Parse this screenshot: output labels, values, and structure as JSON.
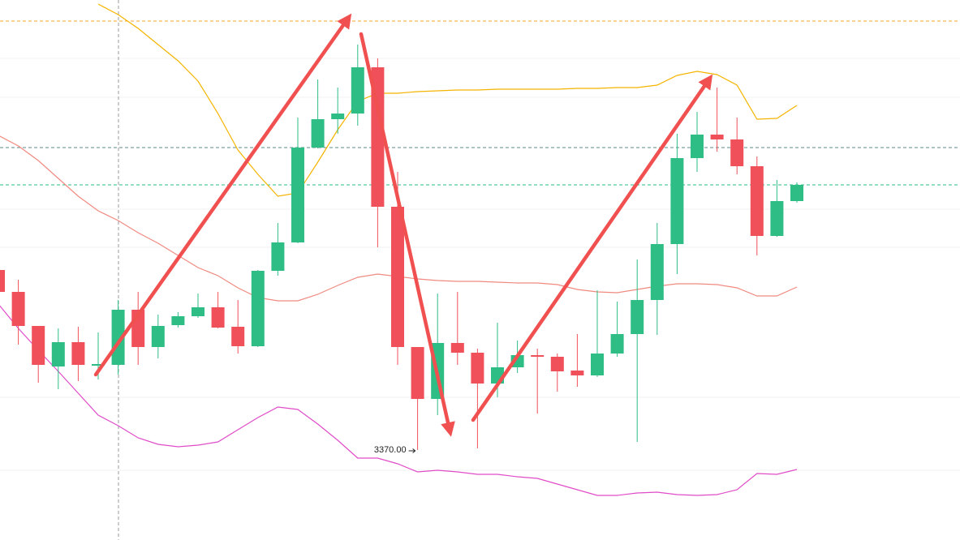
{
  "chart_data": {
    "type": "candlestick",
    "ylim": [
      3314.5,
      3647.5
    ],
    "up_color": "#2ebd85",
    "down_color": "#f0505a",
    "open": [
      3481,
      3467.5,
      3446.5,
      3421.5,
      3436.5,
      3422,
      3422.5,
      3456.5,
      3433.5,
      3447,
      3452.5,
      3458,
      3446,
      3434,
      3480.5,
      3498,
      3556.5,
      3574,
      3577.5,
      3606,
      3520,
      3433.5,
      3401.5,
      3436,
      3430,
      3411,
      3421,
      3428.5,
      3427.5,
      3419,
      3416,
      3429.5,
      3441.5,
      3462.5,
      3497,
      3550,
      3564.5,
      3561.5,
      3545,
      3502,
      3523.5
    ],
    "high": [
      3481,
      3475,
      3446.5,
      3445,
      3446,
      3442.5,
      3462.5,
      3467.5,
      3453.5,
      3455,
      3466.5,
      3467.5,
      3462.5,
      3481,
      3510,
      3575,
      3598.5,
      3593.5,
      3620,
      3611.5,
      3541.5,
      3433.5,
      3466.5,
      3467.5,
      3432.5,
      3448.5,
      3437.5,
      3432.5,
      3429.5,
      3441.5,
      3468.5,
      3461.5,
      3487.5,
      3510,
      3565,
      3578.5,
      3593.5,
      3575,
      3551,
      3536.5,
      3535
    ],
    "low": [
      3467.5,
      3435,
      3411.5,
      3407.5,
      3412.5,
      3413.5,
      3416.5,
      3422.5,
      3426.5,
      3445.5,
      3451.5,
      3445,
      3429.5,
      3433.5,
      3477.5,
      3497.5,
      3556,
      3565,
      3570,
      3495,
      3422.5,
      3370,
      3391.5,
      3422.5,
      3371,
      3402.5,
      3417.5,
      3392.5,
      3406,
      3409,
      3415,
      3427.5,
      3375,
      3441,
      3478.5,
      3541.5,
      3554,
      3540,
      3490,
      3501.5,
      3522.5
    ],
    "close": [
      3467.5,
      3446.5,
      3422.5,
      3436.5,
      3422.5,
      3423,
      3456.5,
      3433.5,
      3446.5,
      3452.5,
      3458,
      3445.5,
      3434,
      3480.5,
      3498,
      3556.5,
      3574,
      3577.5,
      3606,
      3520,
      3433.5,
      3401.5,
      3436,
      3430,
      3411,
      3421,
      3428.5,
      3427.5,
      3418.5,
      3416,
      3429.5,
      3441.5,
      3462.5,
      3497,
      3550,
      3564.5,
      3561.5,
      3545,
      3502,
      3523.5,
      3533.5
    ],
    "series": [
      {
        "color": "#f5b400",
        "values": [
          null,
          null,
          null,
          null,
          null,
          3645,
          3638.5,
          3630,
          3620,
          3610,
          3597.5,
          3577.5,
          3555,
          3540,
          3526.5,
          3528.5,
          3547.5,
          3567.5,
          3585,
          3590,
          3590,
          3591,
          3591.5,
          3592,
          3592,
          3592.5,
          3592.5,
          3592.5,
          3592.5,
          3593,
          3593,
          3593.5,
          3593.5,
          3595,
          3601,
          3603.5,
          3601.5,
          3595,
          3574,
          3574.5,
          3582.5
        ]
      },
      {
        "color": "#f08a80",
        "values": [
          3564,
          3557.5,
          3548.5,
          3537.5,
          3526.5,
          3517.5,
          3511.5,
          3504,
          3497.5,
          3490,
          3482.5,
          3477.5,
          3470,
          3464,
          3462,
          3462,
          3466,
          3471.5,
          3476.5,
          3478.5,
          3477,
          3475.5,
          3474.5,
          3474,
          3474,
          3473.5,
          3473,
          3473,
          3472,
          3469,
          3467.5,
          3467,
          3469,
          3471,
          3472.5,
          3472.5,
          3472,
          3470,
          3465,
          3465,
          3470.5
        ]
      },
      {
        "color": "#e04cc8",
        "values": [
          3460,
          3445,
          3431.5,
          3418.5,
          3405,
          3391.5,
          3385,
          3377.5,
          3373.5,
          3372,
          3373,
          3375,
          3382.5,
          3390,
          3396.5,
          3395,
          3386,
          3376,
          3365,
          3365,
          3361.5,
          3356.5,
          3357.5,
          3356.5,
          3355,
          3355,
          3353.5,
          3352.5,
          3349,
          3345.5,
          3342,
          3342,
          3343.5,
          3344,
          3342.5,
          3342,
          3342.5,
          3345.5,
          3355.5,
          3355,
          3358
        ]
      }
    ],
    "hlines": [
      {
        "value": 3634.5,
        "color": "#f5a623"
      },
      {
        "value": 3556.5,
        "color": "#5a8a8a"
      },
      {
        "value": 3533.5,
        "color": "#2ebd85"
      }
    ],
    "annotation": {
      "value": 3370,
      "label": "3370.00"
    }
  }
}
